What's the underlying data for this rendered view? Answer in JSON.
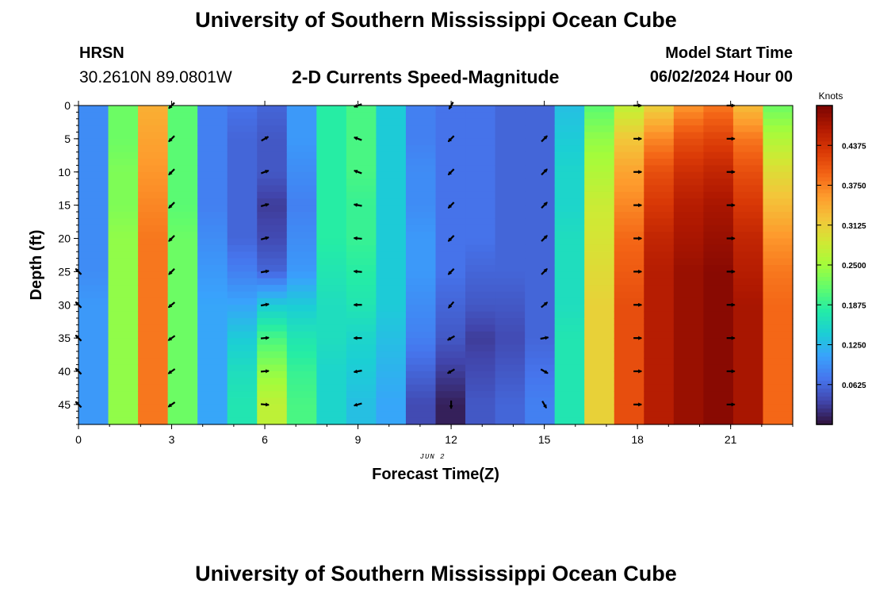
{
  "header": {
    "title": "University of Southern Mississippi Ocean Cube",
    "station": "HRSN",
    "coords": "30.2610N  89.0801W",
    "subtitle": "2-D Currents Speed-Magnitude",
    "model_start_label": "Model Start Time",
    "model_start_value": "06/02/2024 Hour 00"
  },
  "footer": {
    "title": "University of Southern Mississippi Ocean Cube"
  },
  "chart_data": {
    "type": "heatmap",
    "title": "2-D Currents Speed-Magnitude",
    "xlabel": "Forecast Time(Z)",
    "ylabel": "Depth (ft)",
    "date_label": "JUN 2",
    "xlim": [
      0,
      23
    ],
    "ylim": [
      0,
      48
    ],
    "x_ticks": [
      0,
      3,
      6,
      9,
      12,
      15,
      18,
      21
    ],
    "y_ticks": [
      0,
      5,
      10,
      15,
      20,
      25,
      30,
      35,
      40,
      45
    ],
    "colorbar": {
      "label": "Knots",
      "min": 0,
      "max": 0.5,
      "ticks": [
        "0.0625",
        "0.1250",
        "0.1875",
        "0.2500",
        "0.3125",
        "0.3750",
        "0.4375"
      ],
      "tick_values": [
        0.0625,
        0.125,
        0.1875,
        0.25,
        0.3125,
        0.375,
        0.4375
      ],
      "colors": [
        "#30123b",
        "#4145ab",
        "#4675ed",
        "#39a2fc",
        "#1bcfd4",
        "#24eca6",
        "#61fc6c",
        "#a4fc3b",
        "#d1e834",
        "#f3c63a",
        "#fe9b2d",
        "#f36315",
        "#d93806",
        "#b11901",
        "#7a0402"
      ]
    },
    "hours": [
      0,
      1,
      2,
      3,
      4,
      5,
      6,
      7,
      8,
      9,
      10,
      11,
      12,
      13,
      14,
      15,
      16,
      17,
      18,
      19,
      20,
      21,
      22,
      23
    ],
    "depths": [
      0,
      5,
      10,
      15,
      20,
      25,
      30,
      35,
      40,
      45
    ],
    "speed": [
      [
        0.09,
        0.22,
        0.34,
        0.21,
        0.08,
        0.07,
        0.06,
        0.1,
        0.18,
        0.2,
        0.14,
        0.08,
        0.07,
        0.07,
        0.06,
        0.06,
        0.13,
        0.21,
        0.27,
        0.31,
        0.36,
        0.38,
        0.33,
        0.22
      ],
      [
        0.09,
        0.22,
        0.35,
        0.21,
        0.08,
        0.06,
        0.05,
        0.1,
        0.18,
        0.2,
        0.14,
        0.08,
        0.07,
        0.07,
        0.06,
        0.06,
        0.14,
        0.24,
        0.32,
        0.37,
        0.41,
        0.42,
        0.38,
        0.26
      ],
      [
        0.09,
        0.23,
        0.36,
        0.21,
        0.08,
        0.06,
        0.05,
        0.09,
        0.18,
        0.2,
        0.14,
        0.09,
        0.07,
        0.07,
        0.06,
        0.06,
        0.15,
        0.26,
        0.35,
        0.41,
        0.44,
        0.45,
        0.41,
        0.3
      ],
      [
        0.09,
        0.23,
        0.37,
        0.21,
        0.08,
        0.06,
        0.03,
        0.08,
        0.18,
        0.19,
        0.14,
        0.09,
        0.07,
        0.07,
        0.06,
        0.06,
        0.15,
        0.28,
        0.37,
        0.43,
        0.46,
        0.47,
        0.43,
        0.33
      ],
      [
        0.09,
        0.24,
        0.38,
        0.22,
        0.09,
        0.06,
        0.04,
        0.09,
        0.18,
        0.19,
        0.14,
        0.1,
        0.07,
        0.07,
        0.06,
        0.06,
        0.16,
        0.29,
        0.39,
        0.45,
        0.47,
        0.48,
        0.45,
        0.36
      ],
      [
        0.09,
        0.24,
        0.38,
        0.22,
        0.1,
        0.08,
        0.06,
        0.1,
        0.17,
        0.18,
        0.14,
        0.1,
        0.07,
        0.06,
        0.06,
        0.06,
        0.16,
        0.3,
        0.4,
        0.46,
        0.48,
        0.49,
        0.46,
        0.38
      ],
      [
        0.1,
        0.24,
        0.38,
        0.22,
        0.11,
        0.11,
        0.14,
        0.14,
        0.16,
        0.17,
        0.14,
        0.09,
        0.06,
        0.05,
        0.05,
        0.06,
        0.16,
        0.31,
        0.41,
        0.46,
        0.48,
        0.49,
        0.47,
        0.39
      ],
      [
        0.1,
        0.24,
        0.38,
        0.22,
        0.11,
        0.14,
        0.2,
        0.17,
        0.16,
        0.15,
        0.13,
        0.08,
        0.05,
        0.03,
        0.04,
        0.06,
        0.17,
        0.31,
        0.41,
        0.46,
        0.48,
        0.49,
        0.47,
        0.39
      ],
      [
        0.1,
        0.24,
        0.38,
        0.22,
        0.11,
        0.16,
        0.24,
        0.19,
        0.15,
        0.14,
        0.12,
        0.06,
        0.03,
        0.04,
        0.05,
        0.07,
        0.17,
        0.31,
        0.41,
        0.46,
        0.48,
        0.49,
        0.47,
        0.39
      ],
      [
        0.1,
        0.24,
        0.38,
        0.22,
        0.11,
        0.17,
        0.27,
        0.2,
        0.15,
        0.13,
        0.11,
        0.04,
        0.01,
        0.05,
        0.06,
        0.08,
        0.17,
        0.31,
        0.41,
        0.46,
        0.48,
        0.49,
        0.47,
        0.39
      ]
    ],
    "arrow_hours": [
      0,
      3,
      6,
      9,
      12,
      15,
      18,
      21
    ],
    "arrow_angles_deg": [
      [
        null,
        225,
        null,
        200,
        240,
        null,
        0,
        0
      ],
      [
        null,
        225,
        30,
        160,
        225,
        45,
        0,
        0
      ],
      [
        null,
        225,
        20,
        160,
        225,
        45,
        0,
        0
      ],
      [
        null,
        225,
        15,
        170,
        225,
        45,
        0,
        0
      ],
      [
        null,
        225,
        15,
        175,
        225,
        45,
        0,
        0
      ],
      [
        135,
        225,
        10,
        175,
        225,
        45,
        0,
        0
      ],
      [
        135,
        220,
        10,
        180,
        230,
        40,
        0,
        0
      ],
      [
        135,
        215,
        5,
        180,
        210,
        10,
        0,
        0
      ],
      [
        135,
        215,
        5,
        190,
        210,
        330,
        0,
        0
      ],
      [
        135,
        215,
        355,
        195,
        270,
        300,
        0,
        0
      ]
    ]
  }
}
